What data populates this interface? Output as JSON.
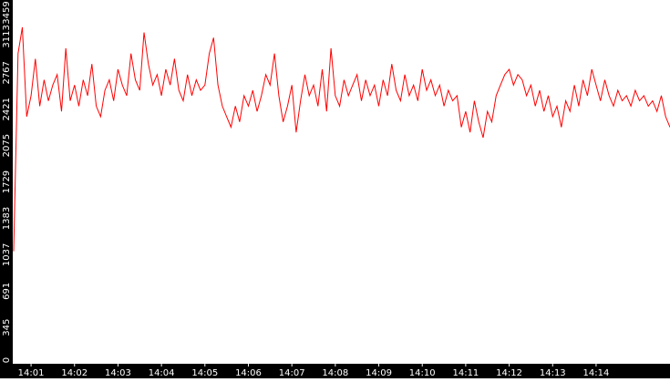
{
  "chart_data": {
    "type": "line",
    "title": "",
    "xlabel": "",
    "ylabel": "",
    "ylim": [
      0,
      3459
    ],
    "y_ticks": [
      0,
      345,
      691,
      1037,
      1383,
      1729,
      2075,
      2421,
      2767,
      3113,
      3459
    ],
    "x_start_minute": 0.6,
    "x_end_minute": 15.7,
    "x_ticks": [
      {
        "label": "14:01",
        "minute": 1
      },
      {
        "label": "14:02",
        "minute": 2
      },
      {
        "label": "14:03",
        "minute": 3
      },
      {
        "label": "14:04",
        "minute": 4
      },
      {
        "label": "14:05",
        "minute": 5
      },
      {
        "label": "14:06",
        "minute": 6
      },
      {
        "label": "14:07",
        "minute": 7
      },
      {
        "label": "14:08",
        "minute": 8
      },
      {
        "label": "14:09",
        "minute": 9
      },
      {
        "label": "14:10",
        "minute": 10
      },
      {
        "label": "14:11",
        "minute": 11
      },
      {
        "label": "14:12",
        "minute": 12
      },
      {
        "label": "14:13",
        "minute": 13
      },
      {
        "label": "14:14",
        "minute": 14
      }
    ],
    "grid": false,
    "legend": "none",
    "line_color": "#ff0000",
    "axis_bar_color": "#000000",
    "series": [
      {
        "points": [
          [
            0.6,
            1070
          ],
          [
            0.7,
            2950
          ],
          [
            0.8,
            3200
          ],
          [
            0.9,
            2350
          ],
          [
            1.0,
            2550
          ],
          [
            1.1,
            2900
          ],
          [
            1.2,
            2450
          ],
          [
            1.3,
            2700
          ],
          [
            1.4,
            2500
          ],
          [
            1.5,
            2650
          ],
          [
            1.6,
            2750
          ],
          [
            1.7,
            2400
          ],
          [
            1.8,
            3000
          ],
          [
            1.9,
            2500
          ],
          [
            2.0,
            2650
          ],
          [
            2.1,
            2450
          ],
          [
            2.2,
            2700
          ],
          [
            2.3,
            2550
          ],
          [
            2.4,
            2850
          ],
          [
            2.5,
            2450
          ],
          [
            2.6,
            2350
          ],
          [
            2.7,
            2600
          ],
          [
            2.8,
            2700
          ],
          [
            2.9,
            2500
          ],
          [
            3.0,
            2800
          ],
          [
            3.1,
            2650
          ],
          [
            3.2,
            2550
          ],
          [
            3.3,
            2950
          ],
          [
            3.4,
            2700
          ],
          [
            3.5,
            2600
          ],
          [
            3.6,
            3150
          ],
          [
            3.7,
            2850
          ],
          [
            3.8,
            2650
          ],
          [
            3.9,
            2750
          ],
          [
            4.0,
            2550
          ],
          [
            4.1,
            2800
          ],
          [
            4.2,
            2650
          ],
          [
            4.3,
            2900
          ],
          [
            4.4,
            2600
          ],
          [
            4.5,
            2500
          ],
          [
            4.6,
            2750
          ],
          [
            4.7,
            2550
          ],
          [
            4.8,
            2700
          ],
          [
            4.9,
            2600
          ],
          [
            5.0,
            2650
          ],
          [
            5.1,
            2950
          ],
          [
            5.2,
            3100
          ],
          [
            5.3,
            2650
          ],
          [
            5.4,
            2450
          ],
          [
            5.5,
            2350
          ],
          [
            5.6,
            2250
          ],
          [
            5.7,
            2450
          ],
          [
            5.8,
            2300
          ],
          [
            5.9,
            2550
          ],
          [
            6.0,
            2450
          ],
          [
            6.1,
            2600
          ],
          [
            6.2,
            2400
          ],
          [
            6.3,
            2550
          ],
          [
            6.4,
            2750
          ],
          [
            6.5,
            2650
          ],
          [
            6.6,
            2950
          ],
          [
            6.7,
            2550
          ],
          [
            6.8,
            2300
          ],
          [
            6.9,
            2450
          ],
          [
            7.0,
            2650
          ],
          [
            7.1,
            2200
          ],
          [
            7.2,
            2500
          ],
          [
            7.3,
            2750
          ],
          [
            7.4,
            2550
          ],
          [
            7.5,
            2650
          ],
          [
            7.6,
            2450
          ],
          [
            7.7,
            2800
          ],
          [
            7.8,
            2400
          ],
          [
            7.9,
            3000
          ],
          [
            8.0,
            2550
          ],
          [
            8.1,
            2450
          ],
          [
            8.2,
            2700
          ],
          [
            8.3,
            2550
          ],
          [
            8.4,
            2650
          ],
          [
            8.5,
            2750
          ],
          [
            8.6,
            2500
          ],
          [
            8.7,
            2700
          ],
          [
            8.8,
            2550
          ],
          [
            8.9,
            2650
          ],
          [
            9.0,
            2450
          ],
          [
            9.1,
            2700
          ],
          [
            9.2,
            2550
          ],
          [
            9.3,
            2850
          ],
          [
            9.4,
            2600
          ],
          [
            9.5,
            2500
          ],
          [
            9.6,
            2750
          ],
          [
            9.7,
            2550
          ],
          [
            9.8,
            2650
          ],
          [
            9.9,
            2500
          ],
          [
            10.0,
            2800
          ],
          [
            10.1,
            2600
          ],
          [
            10.2,
            2700
          ],
          [
            10.3,
            2550
          ],
          [
            10.4,
            2650
          ],
          [
            10.5,
            2450
          ],
          [
            10.6,
            2600
          ],
          [
            10.7,
            2500
          ],
          [
            10.8,
            2550
          ],
          [
            10.9,
            2250
          ],
          [
            11.0,
            2400
          ],
          [
            11.1,
            2200
          ],
          [
            11.2,
            2500
          ],
          [
            11.3,
            2300
          ],
          [
            11.4,
            2150
          ],
          [
            11.5,
            2400
          ],
          [
            11.6,
            2300
          ],
          [
            11.7,
            2550
          ],
          [
            11.8,
            2650
          ],
          [
            11.9,
            2750
          ],
          [
            12.0,
            2800
          ],
          [
            12.1,
            2650
          ],
          [
            12.2,
            2750
          ],
          [
            12.3,
            2700
          ],
          [
            12.4,
            2550
          ],
          [
            12.5,
            2650
          ],
          [
            12.6,
            2450
          ],
          [
            12.7,
            2600
          ],
          [
            12.8,
            2400
          ],
          [
            12.9,
            2550
          ],
          [
            13.0,
            2350
          ],
          [
            13.1,
            2450
          ],
          [
            13.2,
            2250
          ],
          [
            13.3,
            2500
          ],
          [
            13.4,
            2400
          ],
          [
            13.5,
            2650
          ],
          [
            13.6,
            2450
          ],
          [
            13.7,
            2700
          ],
          [
            13.8,
            2550
          ],
          [
            13.9,
            2800
          ],
          [
            14.0,
            2650
          ],
          [
            14.1,
            2500
          ],
          [
            14.2,
            2700
          ],
          [
            14.3,
            2550
          ],
          [
            14.4,
            2450
          ],
          [
            14.5,
            2600
          ],
          [
            14.6,
            2500
          ],
          [
            14.7,
            2550
          ],
          [
            14.8,
            2450
          ],
          [
            14.9,
            2600
          ],
          [
            15.0,
            2500
          ],
          [
            15.1,
            2550
          ],
          [
            15.2,
            2450
          ],
          [
            15.3,
            2500
          ],
          [
            15.4,
            2400
          ],
          [
            15.5,
            2550
          ],
          [
            15.6,
            2350
          ],
          [
            15.7,
            2250
          ]
        ]
      }
    ]
  }
}
